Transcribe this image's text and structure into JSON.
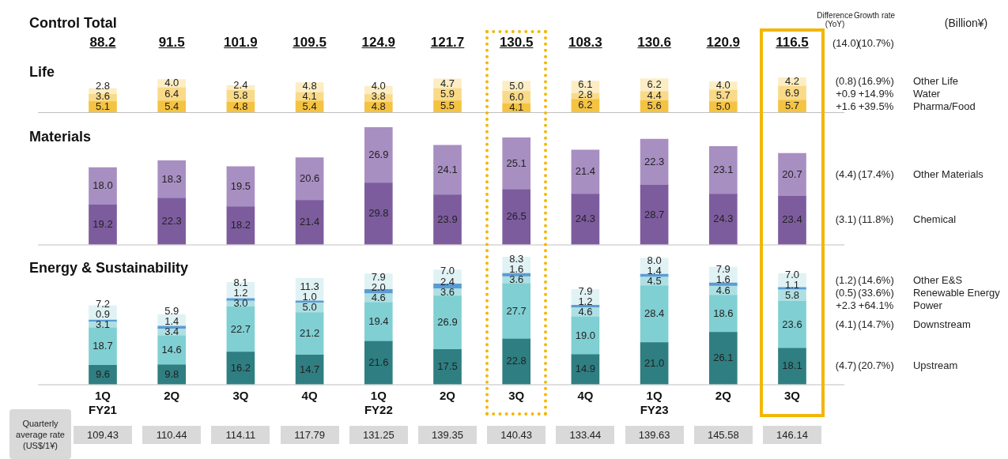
{
  "chart_data": [
    {
      "type": "other",
      "title": "Control Total",
      "values": [
        88.2,
        91.5,
        101.9,
        109.5,
        124.9,
        121.7,
        130.5,
        108.3,
        130.6,
        120.9,
        116.5
      ],
      "data_labels": true,
      "annotations": [
        "Difference (YoY)",
        "Growth rate",
        "(Billion¥)",
        "(14.0)",
        "(10.7%)"
      ]
    },
    {
      "type": "bar",
      "title": "Life",
      "tick_labels": false,
      "stacked": true,
      "series": [
        {
          "name": "Pharma/Food",
          "color": "#f5c342",
          "values": [
            5.1,
            5.4,
            4.8,
            5.4,
            4.8,
            5.5,
            4.1,
            6.2,
            5.6,
            5.0,
            5.7
          ],
          "value_labels": [
            "5.1",
            "5.4",
            "4.8",
            "5.4",
            "4.8",
            "5.5",
            "4.1",
            "6.2",
            "5.6",
            "5.0",
            "5.7"
          ]
        },
        {
          "name": "Water",
          "color": "#f9da88",
          "values": [
            3.6,
            6.4,
            5.8,
            4.1,
            3.8,
            5.9,
            6.0,
            2.8,
            4.4,
            5.7,
            6.9
          ],
          "value_labels": [
            "3.6",
            "6.4",
            "5.8",
            "4.1",
            "3.8",
            "5.9",
            "6.0",
            "2.8",
            "4.4",
            "5.7",
            "6.9"
          ]
        },
        {
          "name": "Other Life",
          "color": "#fcedc4",
          "values": [
            2.8,
            4.0,
            2.4,
            4.8,
            4.0,
            4.7,
            5.0,
            6.1,
            6.2,
            4.0,
            4.2
          ],
          "value_labels": [
            "2.8",
            "4.0",
            "2.4",
            "4.8",
            "4.0",
            "4.7",
            "5.0",
            "6.1",
            "6.2",
            "4.0",
            "4.2"
          ]
        }
      ],
      "annotations": [
        "+1.6",
        "+39.5%",
        "+0.9",
        "+14.9%",
        "(0.8)",
        "(16.9%)"
      ]
    },
    {
      "type": "bar",
      "title": "Materials",
      "tick_labels": false,
      "stacked": true,
      "series": [
        {
          "name": "Chemical",
          "color": "#7d5c9e",
          "values": [
            19.2,
            22.3,
            18.2,
            21.4,
            29.8,
            23.9,
            26.5,
            24.3,
            28.7,
            24.3,
            23.4
          ],
          "value_labels": [
            "19.2",
            "22.3",
            "18.2",
            "21.4",
            "29.8",
            "23.9",
            "26.5",
            "24.3",
            "28.7",
            "24.3",
            "23.4"
          ]
        },
        {
          "name": "Other Materials",
          "color": "#a88fc2",
          "values": [
            18.0,
            18.3,
            19.5,
            20.6,
            26.9,
            24.1,
            25.1,
            21.4,
            22.3,
            23.1,
            20.7
          ],
          "value_labels": [
            "18.0",
            "18.3",
            "19.5",
            "20.6",
            "26.9",
            "24.1",
            "25.1",
            "21.4",
            "22.3",
            "23.1",
            "20.7"
          ]
        }
      ],
      "annotations": [
        "(3.1)",
        "(11.8%)",
        "(4.4)",
        "(17.4%)"
      ]
    },
    {
      "type": "bar",
      "title": "Energy & Sustainability",
      "categories": [
        "1Q FY21",
        "2Q",
        "3Q",
        "4Q",
        "1Q FY22",
        "2Q",
        "3Q",
        "4Q",
        "1Q FY23",
        "2Q",
        "3Q"
      ],
      "tick_labels": "x",
      "stacked": true,
      "series": [
        {
          "name": "Upstream",
          "color": "#2f7e82",
          "values": [
            9.6,
            9.8,
            16.2,
            14.7,
            21.6,
            17.5,
            22.8,
            14.9,
            21.0,
            26.1,
            18.1
          ],
          "value_labels": [
            "9.6",
            "9.8",
            "16.2",
            "14.7",
            "21.6",
            "17.5",
            "22.8",
            "14.9",
            "21.0",
            "26.1",
            "18.1"
          ]
        },
        {
          "name": "Downstream",
          "color": "#80cfd3",
          "values": [
            18.7,
            14.6,
            22.7,
            21.2,
            19.4,
            26.9,
            27.7,
            19.0,
            28.4,
            18.6,
            23.6
          ],
          "value_labels": [
            "18.7",
            "14.6",
            "22.7",
            "21.2",
            "19.4",
            "26.9",
            "27.7",
            "19.0",
            "28.4",
            "18.6",
            "23.6"
          ]
        },
        {
          "name": "Power",
          "color": "#aee0e3",
          "values": [
            3.1,
            3.4,
            3.0,
            5.0,
            4.6,
            3.6,
            3.6,
            4.6,
            4.5,
            4.6,
            5.8
          ],
          "value_labels": [
            "3.1",
            "3.4",
            "3.0",
            "5.0",
            "4.6",
            "3.6",
            "3.6",
            "4.6",
            "4.5",
            "4.6",
            "5.8"
          ]
        },
        {
          "name": "Renewable Energy",
          "color": "#5b9bd5",
          "values": [
            0.9,
            1.4,
            1.2,
            1.0,
            2.0,
            2.4,
            1.6,
            1.2,
            1.4,
            1.6,
            1.1
          ],
          "value_labels": [
            "0.9",
            "1.4",
            "1.2",
            "1.0",
            "2.0",
            "2.4",
            "1.6",
            "1.2",
            "1.4",
            "1.6",
            "1.1"
          ]
        },
        {
          "name": "Other E&S",
          "color": "#e0f2f4",
          "values": [
            7.2,
            5.9,
            8.1,
            11.3,
            7.9,
            7.0,
            8.3,
            7.9,
            8.0,
            7.9,
            7.0
          ],
          "value_labels": [
            "7.2",
            "5.9",
            "8.1",
            "11.3",
            "7.9",
            "7.0",
            "8.3",
            "7.9",
            "8.0",
            "7.9",
            "7.0"
          ]
        }
      ],
      "annotations": [
        "(4.7)",
        "(20.7%)",
        "(4.1)",
        "(14.7%)",
        "+2.3",
        "+64.1%",
        "(0.5)",
        "(33.6%)",
        "(1.2)",
        "(14.6%)"
      ]
    },
    {
      "type": "other",
      "title": "Quarterly average rate (US$/1¥)",
      "values": [
        109.43,
        110.44,
        114.11,
        117.79,
        131.25,
        139.35,
        140.43,
        133.44,
        139.63,
        145.58,
        146.14
      ],
      "data_labels": true
    }
  ]
}
